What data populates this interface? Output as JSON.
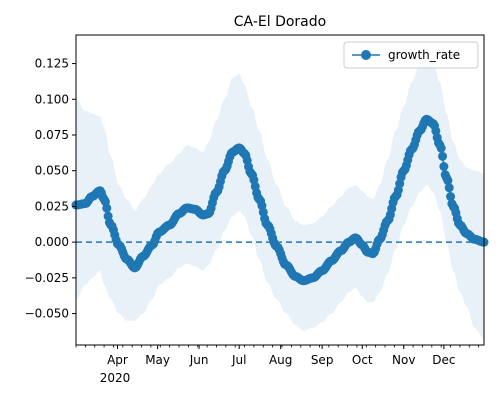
{
  "chart_data": {
    "type": "line",
    "title": "CA-El Dorado",
    "xlabel": "",
    "ylabel": "",
    "x_range": [
      "2020-03-01",
      "2020-12-31"
    ],
    "ylim": [
      -0.072,
      0.145
    ],
    "y_ticks": [
      -0.05,
      -0.025,
      0.0,
      0.025,
      0.05,
      0.075,
      0.1,
      0.125
    ],
    "y_tick_labels": [
      "−0.050",
      "−0.025",
      "0.000",
      "0.025",
      "0.050",
      "0.075",
      "0.100",
      "0.125"
    ],
    "x_ticks": [
      {
        "date": "2020-04-01",
        "label": "Apr"
      },
      {
        "date": "2020-05-01",
        "label": "May"
      },
      {
        "date": "2020-06-01",
        "label": "Jun"
      },
      {
        "date": "2020-07-01",
        "label": "Jul"
      },
      {
        "date": "2020-08-01",
        "label": "Aug"
      },
      {
        "date": "2020-09-01",
        "label": "Sep"
      },
      {
        "date": "2020-10-01",
        "label": "Oct"
      },
      {
        "date": "2020-11-01",
        "label": "Nov"
      },
      {
        "date": "2020-12-01",
        "label": "Dec"
      }
    ],
    "year_label": "2020",
    "reference_line": {
      "y": 0.0,
      "style": "dashed"
    },
    "legend": {
      "position": "upper right"
    },
    "series": [
      {
        "name": "growth_rate",
        "color": "#1f77b4",
        "band_color": "#1f77b4",
        "band_opacity": 0.1,
        "points": [
          {
            "date": "2020-03-01",
            "y": 0.026,
            "lo": -0.04,
            "hi": 0.1
          },
          {
            "date": "2020-03-08",
            "y": 0.027,
            "lo": -0.03,
            "hi": 0.092
          },
          {
            "date": "2020-03-13",
            "y": 0.032,
            "lo": -0.025,
            "hi": 0.09
          },
          {
            "date": "2020-03-19",
            "y": 0.036,
            "lo": -0.02,
            "hi": 0.088
          },
          {
            "date": "2020-03-22",
            "y": 0.03,
            "lo": -0.03,
            "hi": 0.08
          },
          {
            "date": "2020-03-27",
            "y": 0.012,
            "lo": -0.04,
            "hi": 0.06
          },
          {
            "date": "2020-04-02",
            "y": -0.002,
            "lo": -0.05,
            "hi": 0.04
          },
          {
            "date": "2020-04-08",
            "y": -0.012,
            "lo": -0.055,
            "hi": 0.03
          },
          {
            "date": "2020-04-14",
            "y": -0.018,
            "lo": -0.055,
            "hi": 0.022
          },
          {
            "date": "2020-04-20",
            "y": -0.01,
            "lo": -0.05,
            "hi": 0.03
          },
          {
            "date": "2020-04-27",
            "y": -0.002,
            "lo": -0.04,
            "hi": 0.04
          },
          {
            "date": "2020-05-02",
            "y": 0.007,
            "lo": -0.03,
            "hi": 0.048
          },
          {
            "date": "2020-05-10",
            "y": 0.012,
            "lo": -0.025,
            "hi": 0.055
          },
          {
            "date": "2020-05-17",
            "y": 0.02,
            "lo": -0.018,
            "hi": 0.062
          },
          {
            "date": "2020-05-23",
            "y": 0.024,
            "lo": -0.015,
            "hi": 0.068
          },
          {
            "date": "2020-05-29",
            "y": 0.023,
            "lo": -0.017,
            "hi": 0.066
          },
          {
            "date": "2020-06-04",
            "y": 0.019,
            "lo": -0.02,
            "hi": 0.063
          },
          {
            "date": "2020-06-08",
            "y": 0.02,
            "lo": -0.016,
            "hi": 0.07
          },
          {
            "date": "2020-06-14",
            "y": 0.035,
            "lo": -0.005,
            "hi": 0.085
          },
          {
            "date": "2020-06-20",
            "y": 0.05,
            "lo": 0.008,
            "hi": 0.1
          },
          {
            "date": "2020-06-26",
            "y": 0.063,
            "lo": 0.018,
            "hi": 0.115
          },
          {
            "date": "2020-07-01",
            "y": 0.066,
            "lo": 0.022,
            "hi": 0.118
          },
          {
            "date": "2020-07-05",
            "y": 0.062,
            "lo": 0.018,
            "hi": 0.11
          },
          {
            "date": "2020-07-10",
            "y": 0.048,
            "lo": 0.005,
            "hi": 0.095
          },
          {
            "date": "2020-07-16",
            "y": 0.03,
            "lo": -0.012,
            "hi": 0.078
          },
          {
            "date": "2020-07-22",
            "y": 0.012,
            "lo": -0.028,
            "hi": 0.058
          },
          {
            "date": "2020-07-29",
            "y": -0.003,
            "lo": -0.04,
            "hi": 0.04
          },
          {
            "date": "2020-08-05",
            "y": -0.016,
            "lo": -0.05,
            "hi": 0.025
          },
          {
            "date": "2020-08-12",
            "y": -0.024,
            "lo": -0.058,
            "hi": 0.015
          },
          {
            "date": "2020-08-18",
            "y": -0.027,
            "lo": -0.062,
            "hi": 0.012
          },
          {
            "date": "2020-08-25",
            "y": -0.025,
            "lo": -0.06,
            "hi": 0.013
          },
          {
            "date": "2020-09-01",
            "y": -0.02,
            "lo": -0.056,
            "hi": 0.018
          },
          {
            "date": "2020-09-08",
            "y": -0.013,
            "lo": -0.05,
            "hi": 0.025
          },
          {
            "date": "2020-09-15",
            "y": -0.006,
            "lo": -0.042,
            "hi": 0.032
          },
          {
            "date": "2020-09-21",
            "y": 0.0,
            "lo": -0.035,
            "hi": 0.038
          },
          {
            "date": "2020-09-26",
            "y": 0.003,
            "lo": -0.032,
            "hi": 0.04
          },
          {
            "date": "2020-10-01",
            "y": -0.002,
            "lo": -0.038,
            "hi": 0.036
          },
          {
            "date": "2020-10-05",
            "y": -0.007,
            "lo": -0.042,
            "hi": 0.032
          },
          {
            "date": "2020-10-09",
            "y": -0.008,
            "lo": -0.042,
            "hi": 0.03
          },
          {
            "date": "2020-10-14",
            "y": 0.002,
            "lo": -0.035,
            "hi": 0.04
          },
          {
            "date": "2020-10-20",
            "y": 0.015,
            "lo": -0.022,
            "hi": 0.058
          },
          {
            "date": "2020-10-26",
            "y": 0.032,
            "lo": -0.005,
            "hi": 0.078
          },
          {
            "date": "2020-11-01",
            "y": 0.05,
            "lo": 0.012,
            "hi": 0.095
          },
          {
            "date": "2020-11-07",
            "y": 0.065,
            "lo": 0.025,
            "hi": 0.112
          },
          {
            "date": "2020-11-13",
            "y": 0.078,
            "lo": 0.035,
            "hi": 0.125
          },
          {
            "date": "2020-11-18",
            "y": 0.086,
            "lo": 0.04,
            "hi": 0.13
          },
          {
            "date": "2020-11-23",
            "y": 0.083,
            "lo": 0.035,
            "hi": 0.126
          },
          {
            "date": "2020-11-28",
            "y": 0.068,
            "lo": 0.022,
            "hi": 0.112
          },
          {
            "date": "2020-12-03",
            "y": 0.045,
            "lo": 0.0,
            "hi": 0.09
          },
          {
            "date": "2020-12-08",
            "y": 0.025,
            "lo": -0.02,
            "hi": 0.07
          },
          {
            "date": "2020-12-13",
            "y": 0.012,
            "lo": -0.035,
            "hi": 0.058
          },
          {
            "date": "2020-12-18",
            "y": 0.006,
            "lo": -0.045,
            "hi": 0.052
          },
          {
            "date": "2020-12-24",
            "y": 0.002,
            "lo": -0.06,
            "hi": 0.05
          },
          {
            "date": "2020-12-31",
            "y": 0.0,
            "lo": -0.068,
            "hi": 0.048
          }
        ]
      }
    ]
  }
}
